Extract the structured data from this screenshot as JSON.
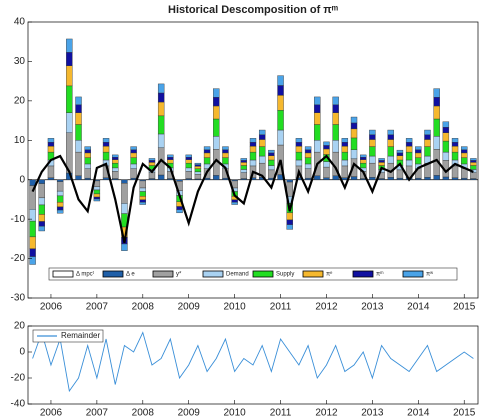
{
  "chart_data": [
    {
      "type": "bar",
      "stacked": true,
      "title": "Historical Descomposition of πᵐ",
      "x": [
        2005.6,
        2005.8,
        2006.0,
        2006.2,
        2006.4,
        2006.6,
        2006.8,
        2007.0,
        2007.2,
        2007.4,
        2007.6,
        2007.8,
        2008.0,
        2008.2,
        2008.4,
        2008.6,
        2008.8,
        2009.0,
        2009.2,
        2009.4,
        2009.6,
        2009.8,
        2010.0,
        2010.2,
        2010.4,
        2010.6,
        2010.8,
        2011.0,
        2011.2,
        2011.4,
        2011.6,
        2011.8,
        2012.0,
        2012.2,
        2012.4,
        2012.6,
        2012.8,
        2013.0,
        2013.2,
        2013.4,
        2013.6,
        2013.8,
        2014.0,
        2014.2,
        2014.4,
        2014.6,
        2014.8,
        2015.0,
        2015.2
      ],
      "xlim": [
        2005.5,
        2015.3
      ],
      "xticks": [
        2006,
        2007,
        2008,
        2009,
        2010,
        2011,
        2012,
        2013,
        2014,
        2015
      ],
      "ylim": [
        -30,
        40
      ],
      "yticks": [
        -30,
        -20,
        -10,
        0,
        10,
        20,
        30,
        40
      ],
      "legend": "lower center",
      "series": [
        {
          "name": "Δ mpcᵗ",
          "type": "line",
          "color": "#000000",
          "values": [
            -3,
            2,
            5,
            6,
            2,
            -5,
            -8,
            3,
            4,
            -5,
            -16,
            -2,
            4,
            2,
            5,
            3,
            -4,
            -11,
            -3,
            2,
            5,
            3,
            -4,
            -6,
            2,
            1,
            -2,
            5,
            -8,
            2,
            -3,
            4,
            6,
            3,
            -2,
            4,
            2,
            -3,
            3,
            2,
            4,
            0,
            3,
            4,
            5,
            2,
            4,
            3,
            2
          ]
        },
        {
          "name": "Δ e",
          "color": "#1f5fa8",
          "values": [
            -1.5,
            -1,
            0.5,
            -0.5,
            1.7,
            1,
            0.4,
            -0.3,
            0.5,
            0.3,
            -0.9,
            0.4,
            -0.3,
            0.3,
            1.2,
            0.3,
            -0.4,
            0.3,
            0.2,
            0.4,
            1.1,
            0.4,
            -0.3,
            0.3,
            0.5,
            0.6,
            0.4,
            1.3,
            -0.6,
            0.5,
            0.4,
            1,
            0.5,
            1,
            0.5,
            0.8,
            0.3,
            0.6,
            0.3,
            0.6,
            0.4,
            0.5,
            0.4,
            0.6,
            1.1,
            0.7,
            0.5,
            0.4,
            0.3
          ]
        },
        {
          "name": "y*",
          "color": "#a0a0a0",
          "values": [
            -6,
            -3.6,
            3,
            -2.4,
            10.2,
            6,
            2.4,
            -1.5,
            3,
            1.8,
            -5.1,
            2.4,
            -1.8,
            1.5,
            6.9,
            1.8,
            -2.4,
            1.8,
            1.2,
            2.4,
            6.6,
            2.4,
            -1.8,
            1.5,
            3,
            3.6,
            2.1,
            7.5,
            -3.6,
            3,
            2.4,
            6,
            2.7,
            6,
            3,
            4.5,
            1.8,
            3.6,
            1.5,
            3.6,
            2.1,
            3,
            2.4,
            3.6,
            6.6,
            4.2,
            3,
            2.4,
            1.5
          ]
        },
        {
          "name": "Demand",
          "color": "#a9d2f2",
          "values": [
            -3,
            -1.8,
            1.5,
            -1.2,
            5.1,
            3,
            1.2,
            -0.8,
            1.5,
            0.9,
            -2.6,
            1.2,
            -0.9,
            0.8,
            3.5,
            0.9,
            -1.2,
            0.9,
            0.6,
            1.2,
            3.3,
            1.2,
            -0.9,
            0.8,
            1.5,
            1.8,
            1.1,
            3.8,
            -1.8,
            1.5,
            1.2,
            3,
            1.4,
            3,
            1.5,
            2.3,
            0.9,
            1.8,
            0.8,
            1.8,
            1.1,
            1.5,
            1.2,
            1.8,
            3.3,
            2.1,
            1.5,
            1.2,
            0.8
          ]
        },
        {
          "name": "Supply",
          "color": "#22dd22",
          "values": [
            -4,
            -2.4,
            2,
            -1.6,
            6.8,
            4,
            1.6,
            -1,
            2,
            1.2,
            -3.4,
            1.6,
            -1.2,
            1,
            4.6,
            1.2,
            -1.6,
            1.2,
            0.8,
            1.6,
            4.4,
            1.6,
            -1.2,
            1,
            2,
            2.4,
            1.4,
            5,
            -2.4,
            2,
            1.6,
            4,
            1.8,
            4,
            2,
            3,
            1.2,
            2.4,
            1,
            2.4,
            1.4,
            2,
            1.6,
            2.4,
            4.4,
            2.8,
            2,
            1.6,
            1
          ]
        },
        {
          "name": "πᵉ",
          "color": "#f5b82e",
          "values": [
            -3,
            -1.8,
            1.5,
            -1.2,
            5.1,
            3,
            1.2,
            -0.8,
            1.5,
            0.9,
            -2.6,
            1.2,
            -0.9,
            0.8,
            3.5,
            0.9,
            -1.2,
            0.9,
            0.6,
            1.2,
            3.3,
            1.2,
            -0.9,
            0.8,
            1.5,
            1.8,
            1.1,
            3.8,
            -1.8,
            1.5,
            1.2,
            3,
            1.4,
            3,
            1.5,
            2.3,
            0.9,
            1.8,
            0.8,
            1.8,
            1.1,
            1.5,
            1.2,
            1.8,
            3.3,
            2.1,
            1.5,
            1.2,
            0.8
          ]
        },
        {
          "name": "πᵐ",
          "color": "#1010a0",
          "values": [
            -2,
            -1.2,
            1,
            -0.8,
            3.4,
            2,
            0.8,
            -0.5,
            1,
            0.6,
            -1.7,
            0.8,
            -0.6,
            0.5,
            2.3,
            0.6,
            -0.8,
            0.6,
            0.4,
            0.8,
            2.2,
            0.8,
            -0.6,
            0.5,
            1,
            1.2,
            0.7,
            2.5,
            -1.2,
            1,
            0.8,
            2,
            0.9,
            2,
            1,
            1.5,
            0.6,
            1.2,
            0.5,
            1.2,
            0.7,
            1,
            0.8,
            1.2,
            2.2,
            1.4,
            1,
            0.8,
            0.5
          ]
        },
        {
          "name": "πʷ",
          "color": "#4aa3e8",
          "values": [
            -2,
            -1.2,
            1,
            -0.8,
            3.4,
            2,
            0.8,
            -0.5,
            1,
            0.6,
            -1.7,
            0.8,
            -0.6,
            0.5,
            2.3,
            0.6,
            -0.8,
            0.6,
            0.4,
            0.8,
            2.2,
            0.8,
            -0.6,
            0.5,
            1,
            1.2,
            0.7,
            2.5,
            -1.2,
            1,
            0.8,
            2,
            0.9,
            2,
            1,
            1.5,
            0.6,
            1.2,
            0.5,
            1.2,
            0.7,
            1,
            0.8,
            1.2,
            2.2,
            1.4,
            1,
            0.8,
            0.5
          ]
        }
      ]
    },
    {
      "type": "line",
      "x": [
        2005.6,
        2005.8,
        2006.0,
        2006.2,
        2006.4,
        2006.6,
        2006.8,
        2007.0,
        2007.2,
        2007.4,
        2007.6,
        2007.8,
        2008.0,
        2008.2,
        2008.4,
        2008.6,
        2008.8,
        2009.0,
        2009.2,
        2009.4,
        2009.6,
        2009.8,
        2010.0,
        2010.2,
        2010.4,
        2010.6,
        2010.8,
        2011.0,
        2011.2,
        2011.4,
        2011.6,
        2011.8,
        2012.0,
        2012.2,
        2012.4,
        2012.6,
        2012.8,
        2013.0,
        2013.2,
        2013.4,
        2013.6,
        2013.8,
        2014.0,
        2014.2,
        2014.4,
        2014.6,
        2014.8,
        2015.0,
        2015.2
      ],
      "xlim": [
        2005.5,
        2015.3
      ],
      "xticks": [
        2006,
        2007,
        2008,
        2009,
        2010,
        2011,
        2012,
        2013,
        2014,
        2015
      ],
      "ylim": [
        -40,
        20
      ],
      "yticks": [
        -40,
        -20,
        0,
        20
      ],
      "legend": "upper left",
      "series": [
        {
          "name": "Remainder",
          "color": "#3a8fd8",
          "values": [
            -5,
            15,
            -10,
            10,
            -30,
            -20,
            5,
            -20,
            10,
            -25,
            5,
            0,
            15,
            -10,
            -5,
            10,
            -20,
            -10,
            5,
            -15,
            -5,
            10,
            -15,
            -5,
            -10,
            5,
            -15,
            10,
            0,
            -10,
            5,
            -20,
            -10,
            5,
            -15,
            -10,
            0,
            -20,
            5,
            -5,
            -10,
            -15,
            -5,
            5,
            -15,
            -10,
            -5,
            0,
            -5
          ]
        }
      ]
    }
  ]
}
